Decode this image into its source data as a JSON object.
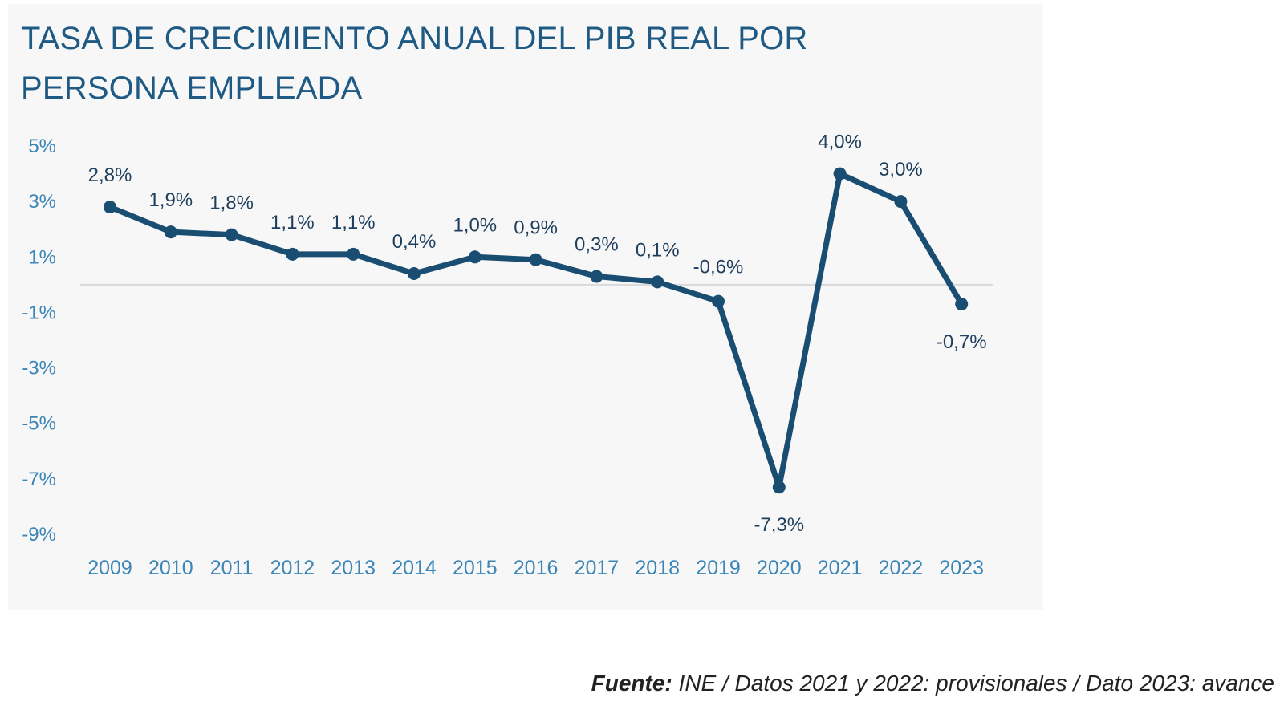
{
  "chart_data": {
    "type": "line",
    "title": "TASA DE CRECIMIENTO ANUAL DEL PIB REAL POR PERSONA EMPLEADA",
    "categories": [
      "2009",
      "2010",
      "2011",
      "2012",
      "2013",
      "2014",
      "2015",
      "2016",
      "2017",
      "2018",
      "2019",
      "2020",
      "2021",
      "2022",
      "2023"
    ],
    "values": [
      2.8,
      1.9,
      1.8,
      1.1,
      1.1,
      0.4,
      1.0,
      0.9,
      0.3,
      0.1,
      -0.6,
      -7.3,
      4.0,
      3.0,
      -0.7
    ],
    "data_labels": [
      "2,8%",
      "1,9%",
      "1,8%",
      "1,1%",
      "1,1%",
      "0,4%",
      "1,0%",
      "0,9%",
      "0,3%",
      "0,1%",
      "-0,6%",
      "-7,3%",
      "4,0%",
      "3,0%",
      "-0,7%"
    ],
    "y_ticks": [
      5,
      3,
      1,
      -1,
      -3,
      -5,
      -7,
      -9
    ],
    "y_tick_labels": [
      "5%",
      "3%",
      "1%",
      "-1%",
      "-3%",
      "-5%",
      "-7%",
      "-9%"
    ],
    "ylim": [
      -9,
      5
    ],
    "xlabel": "",
    "ylabel": "",
    "grid": false,
    "zero_line": true,
    "colors": {
      "line": "#1a4d72",
      "ticks": "#3b86b7",
      "title": "#1f5a84",
      "zero_line": "#d9d9d9",
      "labels": "#1f3f5c"
    }
  },
  "source": {
    "label": "Fuente:",
    "text": " INE / Datos 2021 y 2022: provisionales / Dato 2023: avance"
  }
}
